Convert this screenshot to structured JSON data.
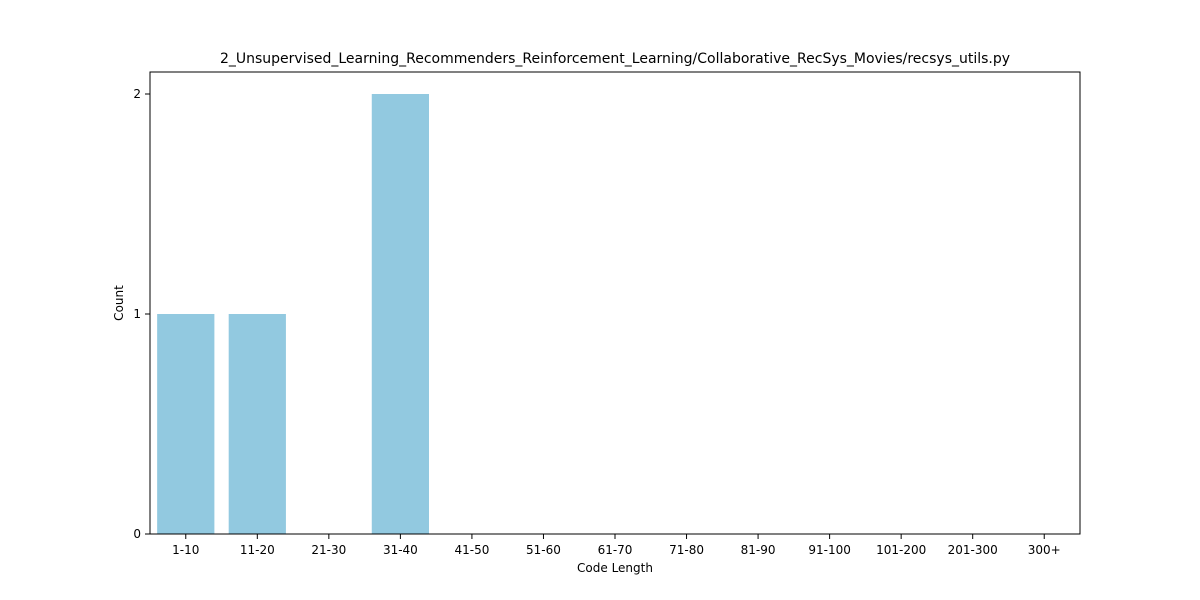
{
  "chart_data": {
    "type": "bar",
    "title": "2_Unsupervised_Learning_Recommenders_Reinforcement_Learning/Collaborative_RecSys_Movies/recsys_utils.py",
    "xlabel": "Code Length",
    "ylabel": "Count",
    "categories": [
      "1-10",
      "11-20",
      "21-30",
      "31-40",
      "41-50",
      "51-60",
      "61-70",
      "71-80",
      "81-90",
      "91-100",
      "101-200",
      "201-300",
      "300+"
    ],
    "values": [
      1,
      1,
      0,
      2,
      0,
      0,
      0,
      0,
      0,
      0,
      0,
      0,
      0
    ],
    "ylim": [
      0,
      2.1
    ],
    "yticks": [
      0,
      1,
      2
    ],
    "bar_color": "#92c9e0",
    "grid": false,
    "legend": "none"
  }
}
